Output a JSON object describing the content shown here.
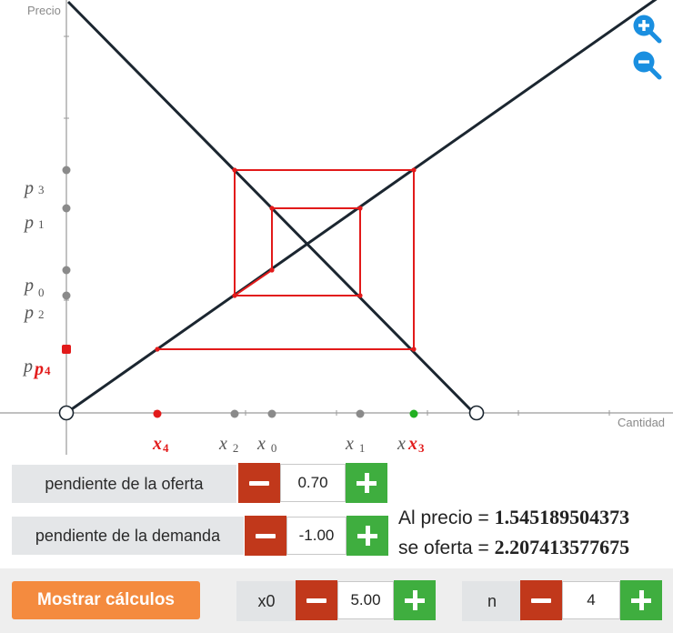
{
  "graph": {
    "y_axis_label": "Precio",
    "x_axis_label": "Cantidad",
    "y_ticks": {
      "p3": {
        "main": "p",
        "sub": "3"
      },
      "p1": {
        "main": "p",
        "sub": "1"
      },
      "p0": {
        "main": "p",
        "sub": "0"
      },
      "p2": {
        "main": "p",
        "sub": "2"
      },
      "p4_overlap_gray": "p",
      "p4_overlap_red": "p",
      "p4_sub": "4"
    },
    "x_ticks": {
      "x4": {
        "main": "x",
        "sub": "4"
      },
      "x2": {
        "main": "x",
        "sub": "2"
      },
      "x0": {
        "main": "x",
        "sub": "0"
      },
      "x1": {
        "main": "x",
        "sub": "1"
      },
      "x3a": "x",
      "x3b": "x",
      "x3_sub": "3"
    },
    "colors": {
      "curve": "#1b2630",
      "cobweb": "#e21a1a",
      "gray_point": "#8a8a8a",
      "green_point": "#22b022"
    }
  },
  "zoom": {
    "in_icon": "zoom-in-icon",
    "out_icon": "zoom-out-icon"
  },
  "controls": {
    "supply_slope": {
      "label": "pendiente de la oferta",
      "value": "0.70"
    },
    "demand_slope": {
      "label": "pendiente de la demanda",
      "value": "-1.00"
    },
    "x0": {
      "label": "x0",
      "value": "5.00"
    },
    "n": {
      "label": "n",
      "value": "4"
    }
  },
  "results": {
    "price_label": "Al precio = ",
    "price_value": "1.545189504373",
    "offer_label": "se oferta = ",
    "offer_value": "2.207413577675"
  },
  "buttons": {
    "show_calculations": "Mostrar cálculos"
  },
  "chart_data": {
    "type": "line",
    "xlabel": "Cantidad",
    "ylabel": "Precio",
    "series": [
      {
        "name": "",
        "values_note": "",
        "points": [
          [
            0,
            0
          ],
          [
            7.5,
            5.25
          ]
        ]
      },
      {
        "name": "",
        "points": [
          [
            0,
            7.5
          ],
          [
            7.5,
            0
          ]
        ]
      }
    ],
    "cobweb": [
      [
        5.0,
        2.5
      ],
      [
        3.571,
        2.5
      ],
      [
        3.571,
        3.929
      ],
      [
        2.551,
        3.929
      ],
      [
        2.551,
        4.949
      ],
      [
        4.3,
        4.949
      ],
      [
        4.3,
        2.0
      ]
    ],
    "grid": false
  }
}
